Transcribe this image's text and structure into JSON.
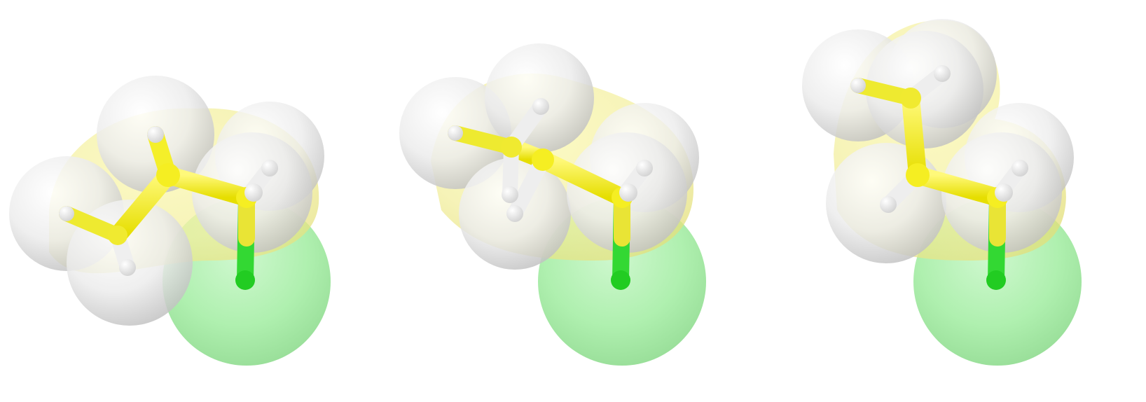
{
  "image": {
    "background": "#ffffff",
    "colors": {
      "carbon": "#f2ef2c",
      "hydrogen": "#f4f4f4",
      "chlorine": "#3fe83f"
    },
    "molecules": [
      {
        "name": "molecule-left"
      },
      {
        "name": "molecule-middle"
      },
      {
        "name": "molecule-right"
      }
    ]
  }
}
